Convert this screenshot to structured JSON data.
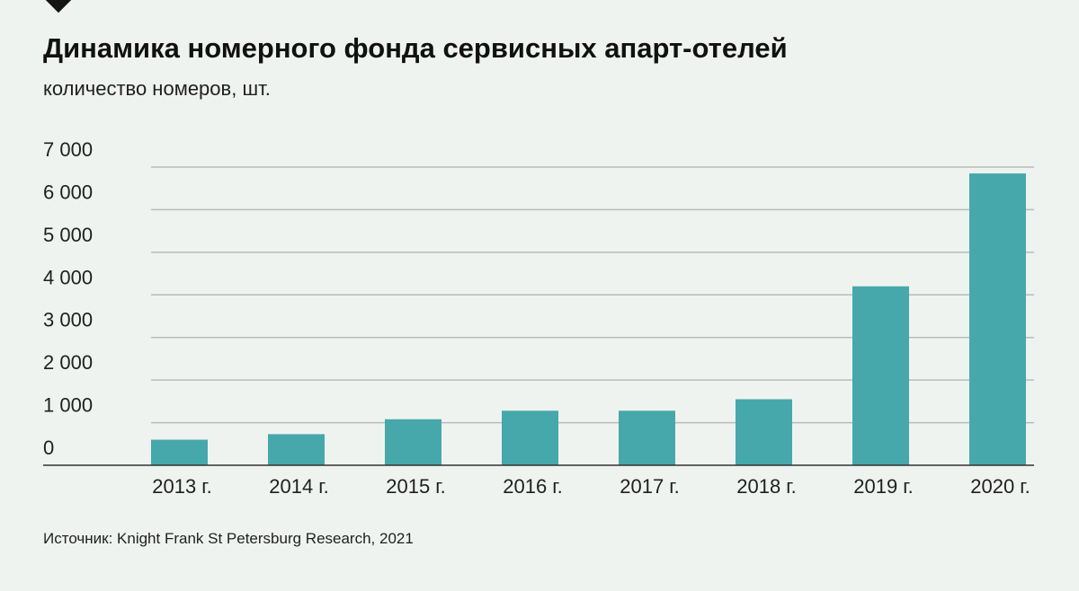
{
  "title": "Динамика номерного фонда сервисных апарт-отелей",
  "subtitle": "количество номеров, шт.",
  "source": "Источник: Knight Frank St Petersburg Research, 2021",
  "colors": {
    "bar": "#46a8aa",
    "grid": "#b9bcbb",
    "axis": "#333333",
    "background": "#eff3ef"
  },
  "chart_data": {
    "type": "bar",
    "title": "Динамика номерного фонда сервисных апарт-отелей",
    "subtitle": "количество номеров, шт.",
    "xlabel": "",
    "ylabel": "",
    "categories": [
      "2013 г.",
      "2014 г.",
      "2015 г.",
      "2016 г.",
      "2017 г.",
      "2018 г.",
      "2019 г.",
      "2020 г."
    ],
    "values": [
      600,
      730,
      1080,
      1280,
      1280,
      1550,
      4200,
      6850
    ],
    "ylim": [
      0,
      7000
    ],
    "yticks": [
      0,
      1000,
      2000,
      3000,
      4000,
      5000,
      6000,
      7000
    ],
    "ytick_labels": [
      "0",
      "1 000",
      "2 000",
      "3 000",
      "4 000",
      "5 000",
      "6 000",
      "7 000"
    ],
    "grid": true,
    "legend": "none"
  }
}
